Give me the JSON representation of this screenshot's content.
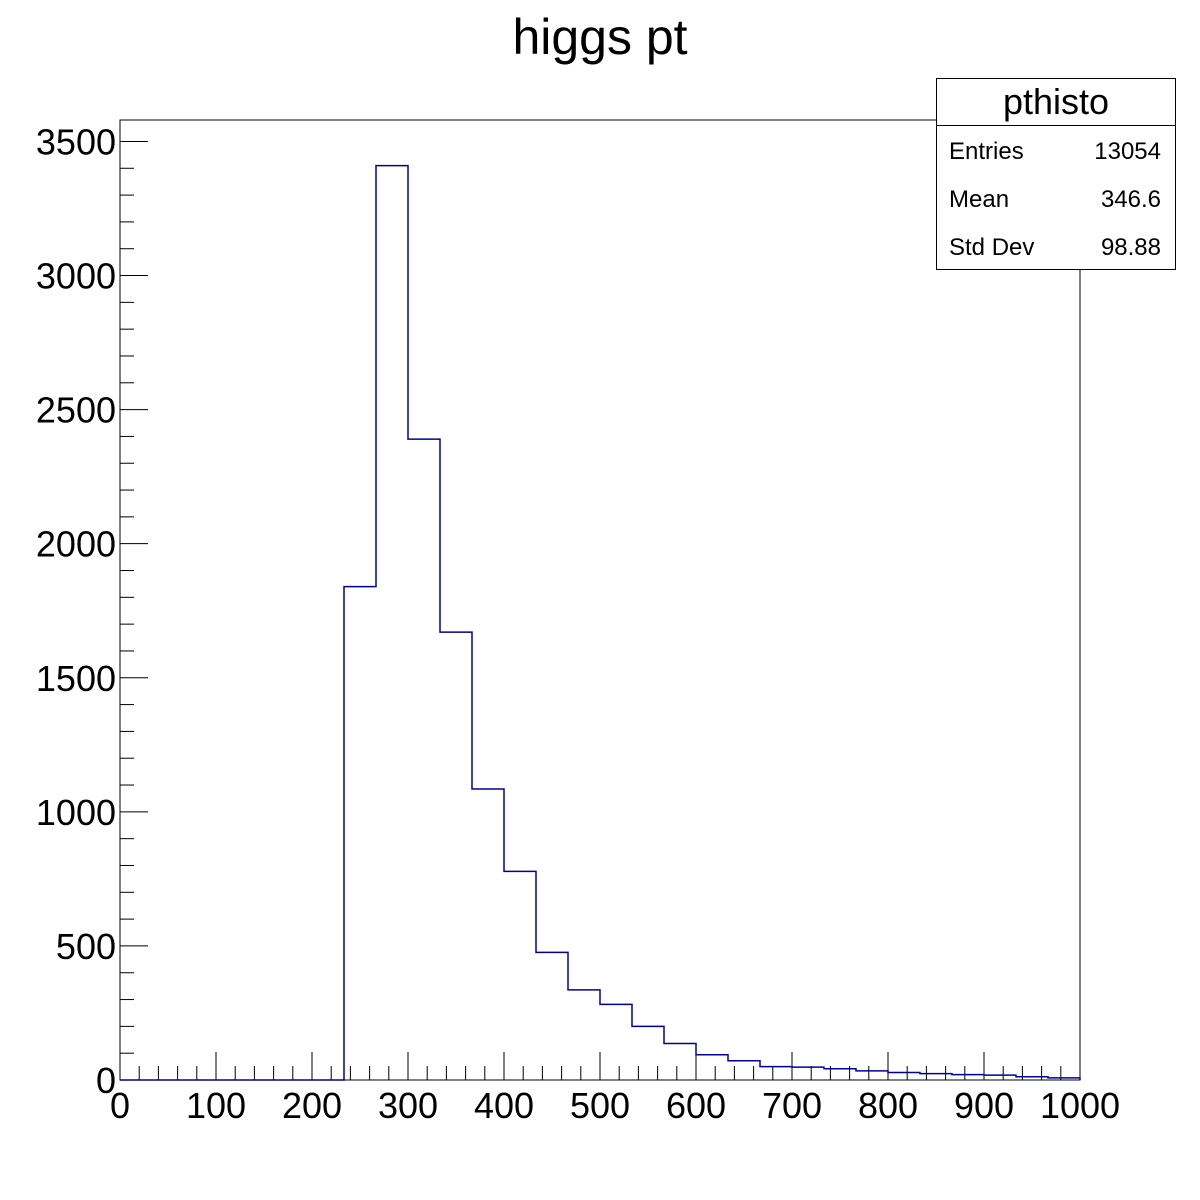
{
  "chart_data": {
    "type": "bar",
    "title": "higgs pt",
    "xlabel": "",
    "ylabel": "",
    "xlim": [
      0,
      1000
    ],
    "ylim": [
      0,
      3580
    ],
    "bin_edges": [
      0,
      33.333,
      66.667,
      100,
      133.333,
      166.667,
      200,
      233.333,
      266.667,
      300,
      333.333,
      366.667,
      400,
      433.333,
      466.667,
      500,
      533.333,
      566.667,
      600,
      633.333,
      666.667,
      700,
      733.333,
      766.667,
      800,
      833.333,
      866.667,
      900,
      933.333,
      966.667,
      1000
    ],
    "values": [
      0,
      0,
      0,
      0,
      0,
      0,
      0,
      1840,
      3410,
      2390,
      1670,
      1085,
      778,
      476,
      336,
      282,
      200,
      136,
      94,
      72,
      50,
      48,
      42,
      34,
      28,
      24,
      20,
      18,
      12,
      8
    ],
    "x_ticks": [
      0,
      100,
      200,
      300,
      400,
      500,
      600,
      700,
      800,
      900,
      1000
    ],
    "y_ticks": [
      0,
      500,
      1000,
      1500,
      2000,
      2500,
      3000,
      3500
    ],
    "grid": false,
    "colors": {
      "line": "#000099",
      "axis": "#000000"
    }
  },
  "stats_box": {
    "name": "pthisto",
    "rows": [
      {
        "label": "Entries",
        "value": "13054"
      },
      {
        "label": "Mean",
        "value": "346.6"
      },
      {
        "label": "Std Dev",
        "value": "98.88"
      }
    ]
  }
}
